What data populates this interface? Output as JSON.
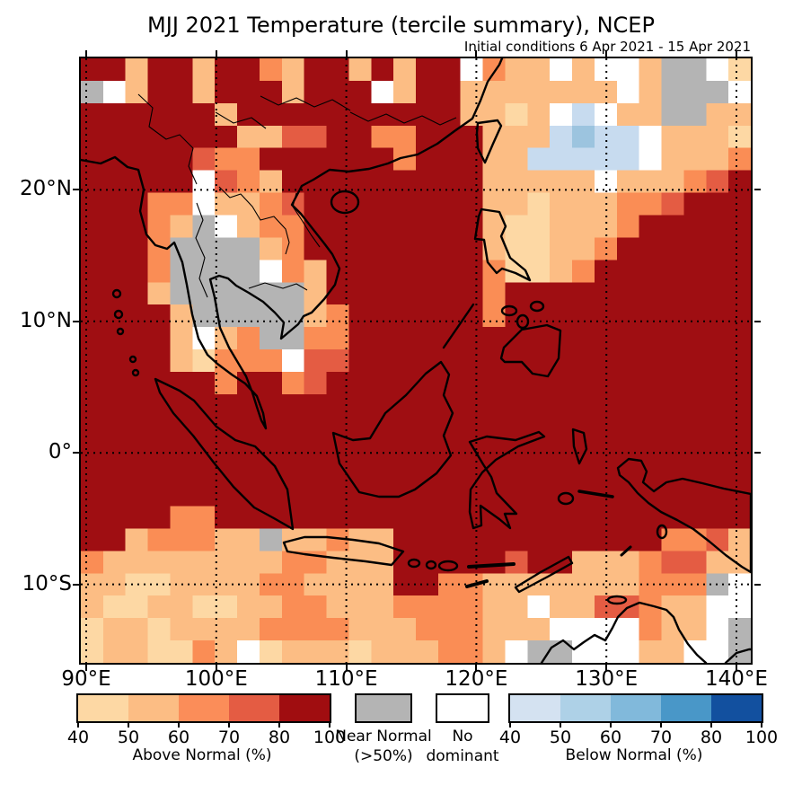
{
  "header": {
    "title": "MJJ 2021 Temperature (tercile summary), NCEP",
    "subtitle": "Initial conditions 6 Apr 2021 - 15 Apr 2021"
  },
  "map": {
    "x_ticks": [
      {
        "label": "90°E",
        "lon": 90
      },
      {
        "label": "100°E",
        "lon": 100
      },
      {
        "label": "110°E",
        "lon": 110
      },
      {
        "label": "120°E",
        "lon": 120
      },
      {
        "label": "130°E",
        "lon": 130
      },
      {
        "label": "140°E",
        "lon": 140
      }
    ],
    "y_ticks": [
      {
        "label": "20°N",
        "lat": 20
      },
      {
        "label": "10°N",
        "lat": 10
      },
      {
        "label": "0°",
        "lat": 0
      },
      {
        "label": "10°S",
        "lat": -10
      }
    ],
    "grid_lons": [
      90,
      100,
      110,
      120,
      130,
      140
    ],
    "grid_lats": [
      20,
      10,
      0,
      -10
    ]
  },
  "chart_data": {
    "type": "heatmap",
    "title": "MJJ 2021 Temperature (tercile summary), NCEP",
    "subtitle": "Initial conditions 6 Apr 2021 - 15 Apr 2021",
    "lon_range": [
      90,
      141.5
    ],
    "lat_range": [
      -16,
      30
    ],
    "grid_cols": 30,
    "grid_rows_count": 27,
    "cell_meaning": {
      "D": "Above Normal 80-100%",
      "R": "Above Normal 70-80%",
      "O": "Above Normal 60-70%",
      "P": "Above Normal 50-60%",
      "L": "Above Normal 40-50%",
      "G": "Near Normal >50%",
      "W": "No dominant tercile",
      "B": "Below Normal 40-50%",
      "C": "Below Normal 50-60%"
    },
    "palette": {
      "D": "#9f0e12",
      "R": "#e45c43",
      "O": "#fa8d55",
      "P": "#fcbd84",
      "L": "#fdd8a4",
      "G": "#b4b4b4",
      "W": "#ffffff",
      "B": "#c7dbef",
      "C": "#9cc4df"
    },
    "grid_rows": [
      "DDPDDPDDOPDDPDPDDWOPPWPWWPGGWL",
      "GWPDDPDDDPDDDWPDDPPPPPPPWPGGGW",
      "DDDDDDPDDDDDDDDDDPPLPWBWPPGGPP",
      "DDDDDDDPPRRDDOODDDPPPBCBBWPPPL",
      "DDDDDROODDDDDDODDDPPBBBBBWPPPO",
      "DDDDDWROPDDDDDDDDDPPPPPWPPPORD",
      "DDDOOWPPORDDDDDDDDPPLPPPOORDDD",
      "DDDOPGWPOODDDDDDDDPLLPPPODDDDD",
      "DDDOGGGGPODDDDDDDDPLLPPODDDDDD",
      "DDDOGGGGWOPDDDDDDDOLLPODDDDDDD",
      "DDDPGGGGGGPDDDDDDDODDDDDDDDDDD",
      "DDDDPGGGGGPODDDDDDODDDDDDDDDDD",
      "DDDDPWPOGGOODDDDDDDDDDDDDDDDDD",
      "DDDDPLOOOWRRDDDDDDDDDDDDDDDDDD",
      "DDDDDDODDORDDDDDDDDDDDDDDDDDDD",
      "DDDDDDDDDDDDDDDDDDDDDDDDDDDDDD",
      "DDDDDDDDDDDDDDDDDDDDDDDDDDDDDD",
      "DDDDDDDDDDDDDDDDDDDDDDDDDDDDDD",
      "DDDDDDDDDDDDDDDDDDDDDDDDDDDDDD",
      "DDDDDDDDDDDDDDDDDDDDDDDDDDDDDD",
      "DDDDOODDDDDDDDDDDDDDDDDDDDDDDD",
      "DDPOOOPPGPPOPPDDDDDDDDDDDDOORP",
      "OPPPPPPPPOOPPPDDDDDRDDPPPORRPP",
      "PPLLPPPPOOPPPPDDOOPPPPPPPOOOGW",
      "PLLPPLLPPOOPPPOOOOPPWPPRROPPWW",
      "LPPLPPPPOOOOPPPOOOPPPWWWWOPPWG",
      "LPPLLOPWLPPPLPPPOOPWGGWWWPPWWG"
    ]
  },
  "legend": {
    "above": {
      "title": "Above Normal (%)",
      "ticks": [
        "40",
        "50",
        "60",
        "70",
        "80",
        "100"
      ],
      "colors": [
        "#fdd8a4",
        "#fcbd84",
        "#fb8d59",
        "#e45c43",
        "#a00d10"
      ]
    },
    "near_normal": {
      "line1": "Near Normal",
      "line2": "(>50%)",
      "color": "#b4b4b4"
    },
    "no_dominant": {
      "line1": "No",
      "line2": "dominant",
      "color": "#ffffff"
    },
    "below": {
      "title": "Below Normal (%)",
      "ticks": [
        "40",
        "50",
        "60",
        "70",
        "80",
        "100"
      ],
      "colors": [
        "#d4e2f1",
        "#aed1e7",
        "#81b9db",
        "#4997c8",
        "#12509f"
      ]
    }
  }
}
